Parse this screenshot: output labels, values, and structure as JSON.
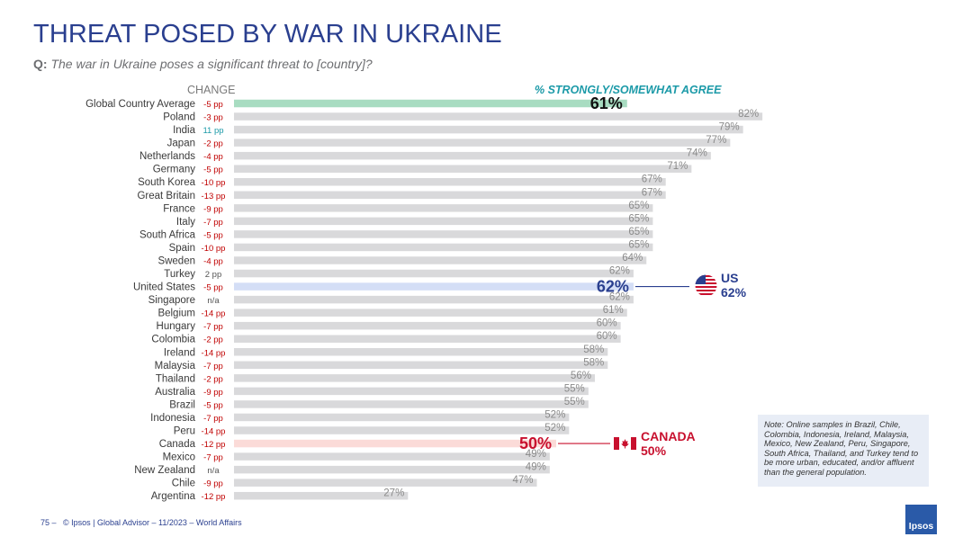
{
  "title": "THREAT POSED BY WAR IN UKRAINE",
  "question_prefix": "Q:",
  "question": "The war in Ukraine poses a significant threat to [country]?",
  "column_headers": {
    "change": "CHANGE",
    "agree": "% STRONGLY/SOMEWHAT AGREE"
  },
  "colors": {
    "bar_default": "#d9d9db",
    "bar_global": "#a8dcc1",
    "bar_us": "#d4def6",
    "bar_canada": "#fbdbd8",
    "change_negative": "#c00000",
    "change_positive": "#1c9aa8",
    "change_neutral": "#555555",
    "us_blue": "#2a3f8f",
    "canada_red": "#c8102e",
    "us_line": "#2a3f8f",
    "canada_line": "#c8102e"
  },
  "chart_data": {
    "type": "bar",
    "orientation": "horizontal",
    "title": "THREAT POSED BY WAR IN UKRAINE",
    "xlim": [
      0,
      100
    ],
    "categories": [
      "Global Country Average",
      "Poland",
      "India",
      "Japan",
      "Netherlands",
      "Germany",
      "South Korea",
      "Great Britain",
      "France",
      "Italy",
      "South Africa",
      "Spain",
      "Sweden",
      "Turkey",
      "United States",
      "Singapore",
      "Belgium",
      "Hungary",
      "Colombia",
      "Ireland",
      "Malaysia",
      "Thailand",
      "Australia",
      "Brazil",
      "Indonesia",
      "Peru",
      "Canada",
      "Mexico",
      "New Zealand",
      "Chile",
      "Argentina"
    ],
    "values": [
      61,
      82,
      79,
      77,
      74,
      71,
      67,
      67,
      65,
      65,
      65,
      65,
      64,
      62,
      62,
      62,
      61,
      60,
      60,
      58,
      58,
      56,
      55,
      55,
      52,
      52,
      50,
      49,
      49,
      47,
      27
    ],
    "value_labels": [
      "61%",
      "82%",
      "79%",
      "77%",
      "74%",
      "71%",
      "67%",
      "67%",
      "65%",
      "65%",
      "65%",
      "65%",
      "64%",
      "62%",
      "62%",
      "62%",
      "61%",
      "60%",
      "60%",
      "58%",
      "58%",
      "56%",
      "55%",
      "55%",
      "52%",
      "52%",
      "50%",
      "49%",
      "49%",
      "47%",
      "27%"
    ],
    "changes": [
      "-5 pp",
      "-3 pp",
      "11 pp",
      "-2 pp",
      "-4 pp",
      "-5 pp",
      "-10 pp",
      "-13 pp",
      "-9 pp",
      "-7 pp",
      "-5 pp",
      "-10 pp",
      "-4 pp",
      "2 pp",
      "-5 pp",
      "n/a",
      "-14 pp",
      "-7 pp",
      "-2 pp",
      "-14 pp",
      "-7 pp",
      "-2 pp",
      "-9 pp",
      "-5 pp",
      "-7 pp",
      "-14 pp",
      "-12 pp",
      "-7 pp",
      "n/a",
      "-9 pp",
      "-12 pp"
    ],
    "highlights": {
      "Global Country Average": "global",
      "United States": "us",
      "Canada": "canada"
    }
  },
  "callouts": {
    "us": {
      "name": "US",
      "value": "62%"
    },
    "canada": {
      "name": "CANADA",
      "value": "50%"
    }
  },
  "note": "Note: Online samples in Brazil, Chile, Colombia, Indonesia, Ireland, Malaysia, Mexico, New Zealand, Peru, Singapore, South Africa, Thailand, and Turkey tend to be more urban, educated, and/or affluent than the general population.",
  "footer": {
    "page": "75",
    "text": "© Ipsos | Global Advisor – 11/2023 – World Affairs"
  },
  "logo_text": "Ipsos"
}
